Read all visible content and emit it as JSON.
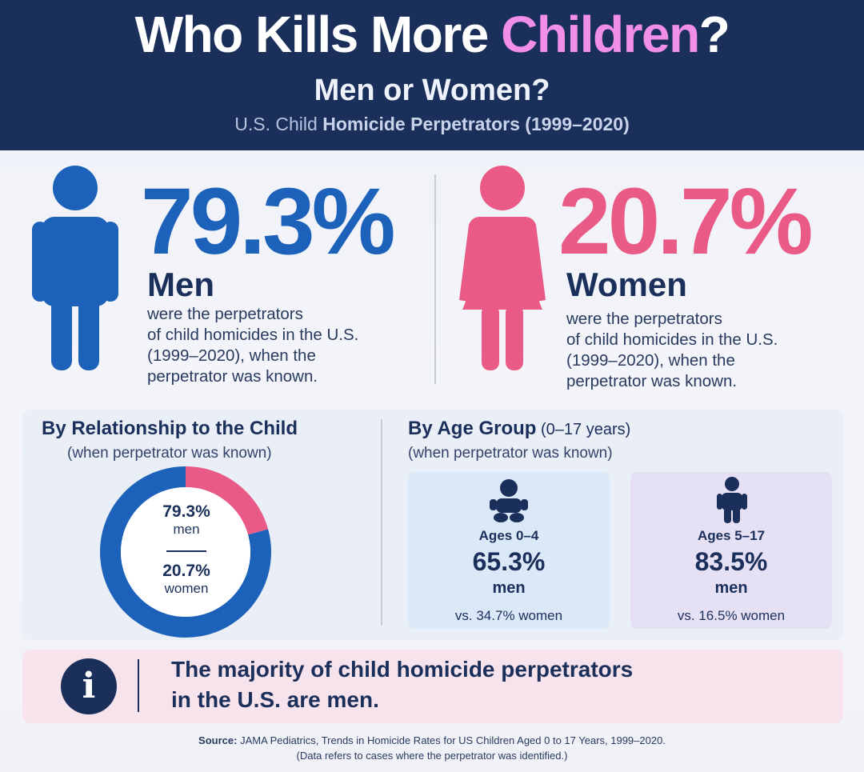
{
  "header": {
    "title_pre": "Who Kills More ",
    "title_accent": "Children",
    "title_post": "?",
    "subtitle": "Men or Women?",
    "caption_pre": "U.S. Child",
    "caption_main": " Homicide Perpetrators (1999–2020)"
  },
  "stats": {
    "men": {
      "pct": "79.3%",
      "label": "Men",
      "desc": [
        "were the perpetrators",
        "of child homicides in the U.S.",
        "(1999–2020), when the",
        "perpetrator was known."
      ]
    },
    "women": {
      "pct": "20.7%",
      "label": "Women",
      "desc": [
        "were the perpetrators",
        "of child homicides in the U.S.",
        "(1999–2020), when the",
        "perpetrator was known."
      ]
    }
  },
  "relationship": {
    "heading": "By Relationship to the Child",
    "sub": "(when perpetrator was known)",
    "men_pct": "79.3%",
    "men_label": "men",
    "women_pct": "20.7%",
    "women_label": "women"
  },
  "age": {
    "heading": "By Age Group",
    "heading_range": " (0–17 years)",
    "sub": "(when perpetrator was known)",
    "cards": [
      {
        "ages": "Ages 0–4",
        "pct": "65.3%",
        "who": "men",
        "vs": "vs. 34.7% women"
      },
      {
        "ages": "Ages 5–17",
        "pct": "83.5%",
        "who": "men",
        "vs": "vs. 16.5% women"
      }
    ]
  },
  "info": {
    "icon": "info-icon",
    "line1": "The majority of child homicide perpetrators",
    "line2": "in the U.S. are men."
  },
  "source": {
    "label": "Source:",
    "text": " JAMA Pediatrics, Trends in Homicide Rates for US Children Aged 0 to 17 Years, 1999–2020.",
    "note": "(Data refers to cases where the perpetrator was identified.)"
  },
  "colors": {
    "navy": "#1b2f5b",
    "men_blue": "#1c62ba",
    "women_pink": "#ea5a86",
    "accent_pink": "#f08ee8",
    "card_blue": "#dbe8f8",
    "card_purple": "#e6e0f4",
    "info_bg": "#f7e3ec"
  },
  "chart_data": [
    {
      "type": "pie",
      "categories": [
        "men",
        "women"
      ],
      "values": [
        79.3,
        20.7
      ],
      "title": "By Relationship to the Child"
    },
    {
      "type": "bar",
      "categories": [
        "Ages 0–4",
        "Ages 5–17"
      ],
      "series": [
        {
          "name": "men",
          "values": [
            65.3,
            83.5
          ]
        },
        {
          "name": "women",
          "values": [
            34.7,
            16.5
          ]
        }
      ],
      "title": "By Age Group (0–17 years)"
    }
  ]
}
